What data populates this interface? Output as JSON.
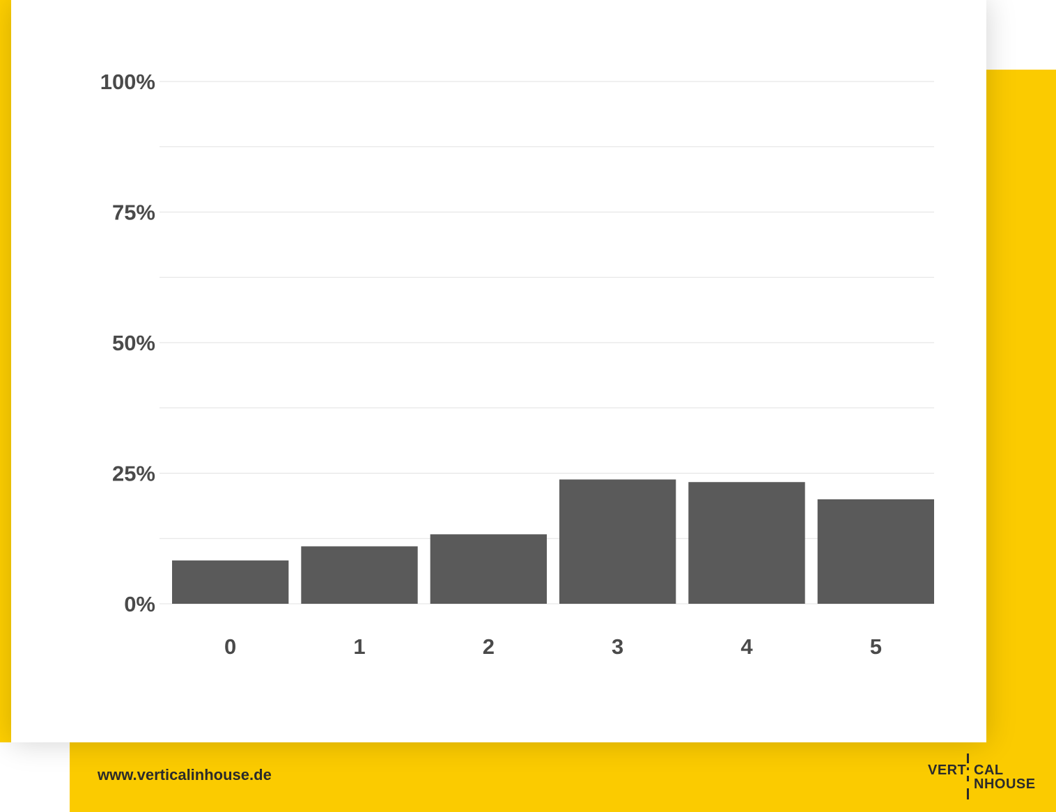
{
  "footer": {
    "url": "www.verticalinhouse.de"
  },
  "logo": {
    "line1_left": "VERT",
    "line1_right": "CAL",
    "line2_right": "NHOUSE"
  },
  "colors": {
    "bar": "#5a5a5a",
    "grid": "#e2e2e2",
    "accent": "#FBCB00",
    "text": "#4a4a4a"
  },
  "chart_data": {
    "type": "bar",
    "categories": [
      "0",
      "1",
      "2",
      "3",
      "4",
      "5"
    ],
    "values": [
      8.3,
      11.0,
      13.3,
      23.8,
      23.3,
      20.0
    ],
    "ylim": [
      0,
      100
    ],
    "y_ticks": [
      0,
      25,
      50,
      75,
      100
    ],
    "y_tick_labels": [
      "0%",
      "25%",
      "50%",
      "75%",
      "100%"
    ],
    "y_minor_gridlines": [
      12.5,
      37.5,
      62.5,
      87.5
    ],
    "grid": true,
    "title": "",
    "xlabel": "",
    "ylabel": ""
  }
}
